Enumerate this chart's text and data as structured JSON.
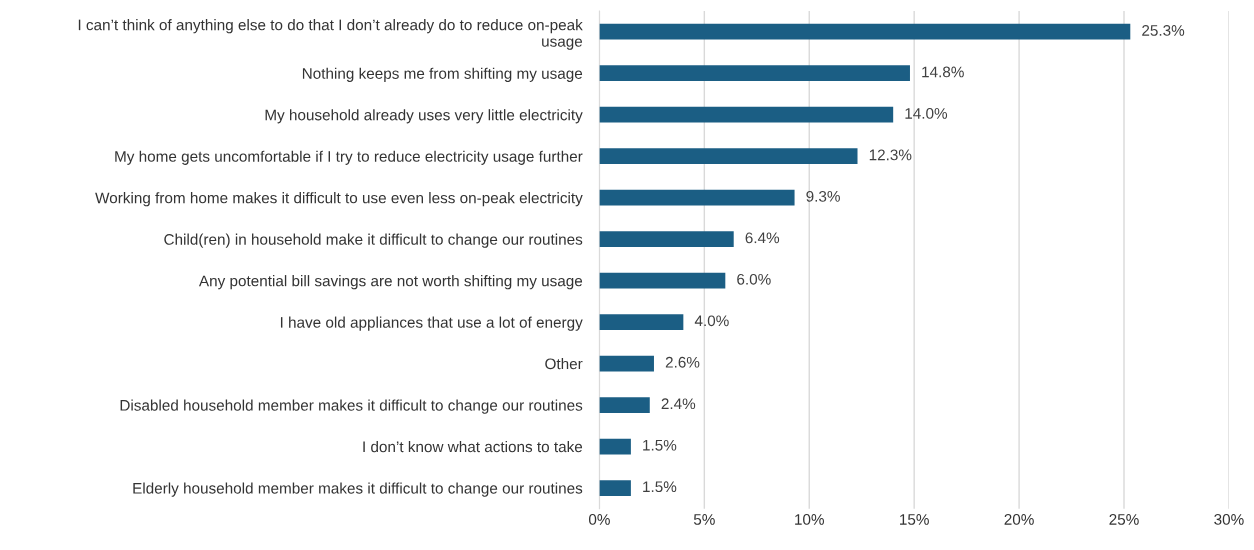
{
  "chart_data": {
    "type": "bar",
    "orientation": "horizontal",
    "categories": [
      "I can’t think of anything else to do that I don’t already do to reduce on-peak\nusage",
      "Nothing keeps me from shifting my usage",
      "My household already uses very little electricity",
      "My home gets uncomfortable if I try to reduce electricity usage further",
      "Working from home makes it difficult to use even less on-peak electricity",
      "Child(ren) in household make it difficult to change our routines",
      "Any potential bill savings are not worth shifting my usage",
      "I have old appliances that use a lot of energy",
      "Other",
      "Disabled household member makes it difficult to change our routines",
      "I don’t know what actions to take",
      "Elderly household member makes it difficult to change our routines"
    ],
    "values": [
      25.3,
      14.8,
      14.0,
      12.3,
      9.3,
      6.4,
      6.0,
      4.0,
      2.6,
      2.4,
      1.5,
      1.5
    ],
    "value_labels": [
      "25.3%",
      "14.8%",
      "14.0%",
      "12.3%",
      "9.3%",
      "6.4%",
      "6.0%",
      "4.0%",
      "2.6%",
      "2.4%",
      "1.5%",
      "1.5%"
    ],
    "color": "#1b5e84",
    "xlim": [
      0,
      30
    ],
    "xticks": [
      {
        "value": 0,
        "label": "0%"
      },
      {
        "value": 5,
        "label": "5%"
      },
      {
        "value": 10,
        "label": "10%"
      },
      {
        "value": 15,
        "label": "15%"
      },
      {
        "value": 20,
        "label": "20%"
      },
      {
        "value": 25,
        "label": "25%"
      },
      {
        "value": 30,
        "label": "30%"
      }
    ],
    "grid": "x",
    "legend": false
  }
}
